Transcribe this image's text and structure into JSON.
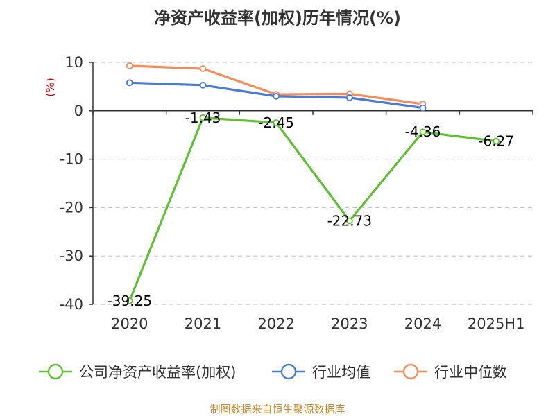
{
  "chart_data": {
    "type": "line",
    "title": "净资产收益率(加权)历年情况(%)",
    "ylabel": "(%)",
    "categories": [
      "2020",
      "2021",
      "2022",
      "2023",
      "2024",
      "2025H1"
    ],
    "ylim": [
      -40,
      10
    ],
    "yticks": [
      10,
      0,
      -10,
      -20,
      -30,
      -40
    ],
    "grid": true,
    "legend_position": "bottom",
    "series": [
      {
        "name": "公司净资产收益率(加权)",
        "color": "#5ec12f",
        "values": [
          -39.25,
          -1.43,
          -2.45,
          -22.73,
          -4.36,
          -6.27
        ],
        "labels": [
          "-39.25",
          "-1.43",
          "-2.45",
          "-22.73",
          "-4.36",
          "-6.27"
        ]
      },
      {
        "name": "行业均值",
        "color": "#4a7bd6",
        "values": [
          5.8,
          5.3,
          3.0,
          2.7,
          0.6,
          null
        ]
      },
      {
        "name": "行业中位数",
        "color": "#f58d5a",
        "values": [
          9.3,
          8.7,
          3.4,
          3.5,
          1.4,
          null
        ]
      }
    ]
  },
  "source": "制图数据来自恒生聚源数据库"
}
